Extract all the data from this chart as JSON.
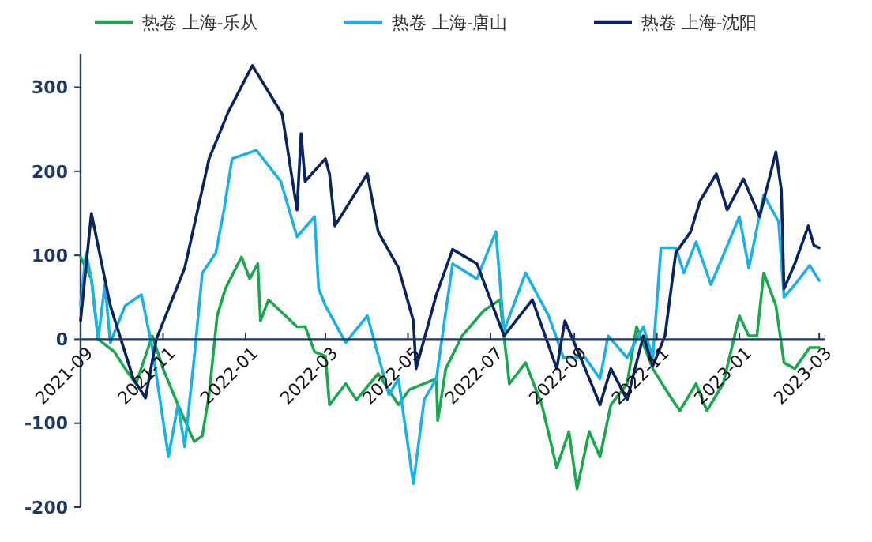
{
  "chart_data": {
    "type": "line",
    "legend": "top",
    "grid": false,
    "xlim": [
      "2021-09-01",
      "2023-03-05"
    ],
    "xticks": [
      "2021-09",
      "2021-11",
      "2022-01",
      "2022-03",
      "2022-05",
      "2022-07",
      "2022-09",
      "2022-11",
      "2023-01",
      "2023-03"
    ],
    "ylim": [
      -200,
      340
    ],
    "yticks": [
      -200,
      -100,
      0,
      100,
      200,
      300
    ],
    "series": [
      {
        "name": "热卷 上海-乐从",
        "color": "#1aa84e",
        "x": [
          "2021-09-01",
          "2021-09-09",
          "2021-09-14",
          "2021-09-26",
          "2021-10-04",
          "2021-10-12",
          "2021-10-24",
          "2021-11-01",
          "2021-11-12",
          "2021-11-24",
          "2021-11-30",
          "2021-12-05",
          "2021-12-11",
          "2021-12-17",
          "2021-12-29",
          "2022-01-04",
          "2022-01-10",
          "2022-01-12",
          "2022-01-18",
          "2022-02-08",
          "2022-02-14",
          "2022-02-21",
          "2022-03-01",
          "2022-03-04",
          "2022-03-16",
          "2022-03-24",
          "2022-04-09",
          "2022-04-24",
          "2022-05-02",
          "2022-05-22",
          "2022-05-23",
          "2022-05-29",
          "2022-06-10",
          "2022-06-26",
          "2022-07-08",
          "2022-07-15",
          "2022-07-27",
          "2022-08-08",
          "2022-08-19",
          "2022-08-28",
          "2022-09-03",
          "2022-09-12",
          "2022-09-20",
          "2022-09-28",
          "2022-10-10",
          "2022-10-17",
          "2022-10-29",
          "2022-11-10",
          "2022-11-18",
          "2022-11-30",
          "2022-12-08",
          "2022-12-20",
          "2023-01-01",
          "2023-01-08",
          "2023-01-14",
          "2023-01-19",
          "2023-01-28",
          "2023-02-03",
          "2023-02-11",
          "2023-02-22",
          "2023-03-01"
        ],
        "values": [
          98,
          72,
          0,
          -15,
          -35,
          -53,
          4,
          -35,
          -78,
          -122,
          -115,
          -66,
          28,
          60,
          98,
          72,
          90,
          22,
          47,
          15,
          15,
          -15,
          -20,
          -78,
          -53,
          -72,
          -41,
          -78,
          -60,
          -47,
          -97,
          -35,
          4,
          34,
          47,
          -53,
          -28,
          -78,
          -153,
          -110,
          -178,
          -110,
          -140,
          -78,
          -53,
          15,
          -35,
          -66,
          -85,
          -53,
          -85,
          -53,
          28,
          4,
          4,
          79,
          40,
          -28,
          -35,
          -10,
          -10
        ]
      },
      {
        "name": "热卷 上海-唐山",
        "color": "#1ab0e8",
        "x": [
          "2021-09-01",
          "2021-09-05",
          "2021-09-09",
          "2021-09-14",
          "2021-09-19",
          "2021-09-23",
          "2021-10-04",
          "2021-10-16",
          "2021-10-24",
          "2021-11-05",
          "2021-11-12",
          "2021-11-17",
          "2021-11-24",
          "2021-11-30",
          "2021-12-10",
          "2021-12-16",
          "2021-12-22",
          "2022-01-09",
          "2022-01-27",
          "2022-02-08",
          "2022-02-21",
          "2022-02-24",
          "2022-03-01",
          "2022-03-16",
          "2022-04-01",
          "2022-04-17",
          "2022-04-24",
          "2022-05-05",
          "2022-05-10",
          "2022-05-13",
          "2022-05-22",
          "2022-06-03",
          "2022-06-21",
          "2022-07-05",
          "2022-07-11",
          "2022-07-27",
          "2022-08-13",
          "2022-08-24",
          "2022-09-09",
          "2022-09-20",
          "2022-09-26",
          "2022-10-10",
          "2022-10-22",
          "2022-10-29",
          "2022-11-04",
          "2022-11-15",
          "2022-11-21",
          "2022-11-30",
          "2022-12-11",
          "2023-01-01",
          "2023-01-08",
          "2023-01-19",
          "2023-01-30",
          "2023-02-03",
          "2023-02-11",
          "2023-02-22",
          "2023-03-01"
        ],
        "values": [
          40,
          103,
          72,
          0,
          65,
          -4,
          40,
          53,
          -10,
          -140,
          -78,
          -128,
          -22,
          79,
          103,
          154,
          215,
          225,
          188,
          122,
          146,
          60,
          40,
          -4,
          28,
          -66,
          -47,
          -172,
          -110,
          -72,
          -47,
          90,
          72,
          128,
          10,
          79,
          28,
          -22,
          -22,
          -47,
          4,
          -22,
          15,
          -22,
          109,
          109,
          79,
          116,
          65,
          146,
          85,
          172,
          140,
          50,
          65,
          88,
          70
        ]
      },
      {
        "name": "热卷 上海-沈阳",
        "color": "#0a2463",
        "x": [
          "2021-09-01",
          "2021-09-09",
          "2021-09-23",
          "2021-10-10",
          "2021-10-19",
          "2021-10-27",
          "2021-11-17",
          "2021-12-05",
          "2021-12-19",
          "2022-01-06",
          "2022-01-28",
          "2022-02-08",
          "2022-02-11",
          "2022-02-14",
          "2022-03-01",
          "2022-03-04",
          "2022-03-08",
          "2022-04-01",
          "2022-04-09",
          "2022-04-24",
          "2022-05-05",
          "2022-05-07",
          "2022-05-22",
          "2022-06-03",
          "2022-06-21",
          "2022-07-11",
          "2022-08-01",
          "2022-08-19",
          "2022-08-25",
          "2022-09-09",
          "2022-09-20",
          "2022-09-28",
          "2022-10-10",
          "2022-10-22",
          "2022-10-29",
          "2022-11-07",
          "2022-11-15",
          "2022-11-26",
          "2022-12-03",
          "2022-12-15",
          "2022-12-23",
          "2023-01-04",
          "2023-01-16",
          "2023-01-28",
          "2023-02-01",
          "2023-02-03",
          "2023-02-11",
          "2023-02-21",
          "2023-02-25",
          "2023-03-01"
        ],
        "values": [
          22,
          150,
          40,
          -47,
          -70,
          0,
          85,
          215,
          270,
          326,
          268,
          154,
          245,
          188,
          215,
          197,
          135,
          197,
          128,
          85,
          22,
          -35,
          53,
          107,
          90,
          4,
          47,
          -35,
          22,
          -35,
          -78,
          -35,
          -72,
          4,
          -32,
          4,
          103,
          128,
          165,
          197,
          154,
          191,
          146,
          223,
          178,
          60,
          90,
          135,
          112,
          109
        ]
      }
    ]
  }
}
